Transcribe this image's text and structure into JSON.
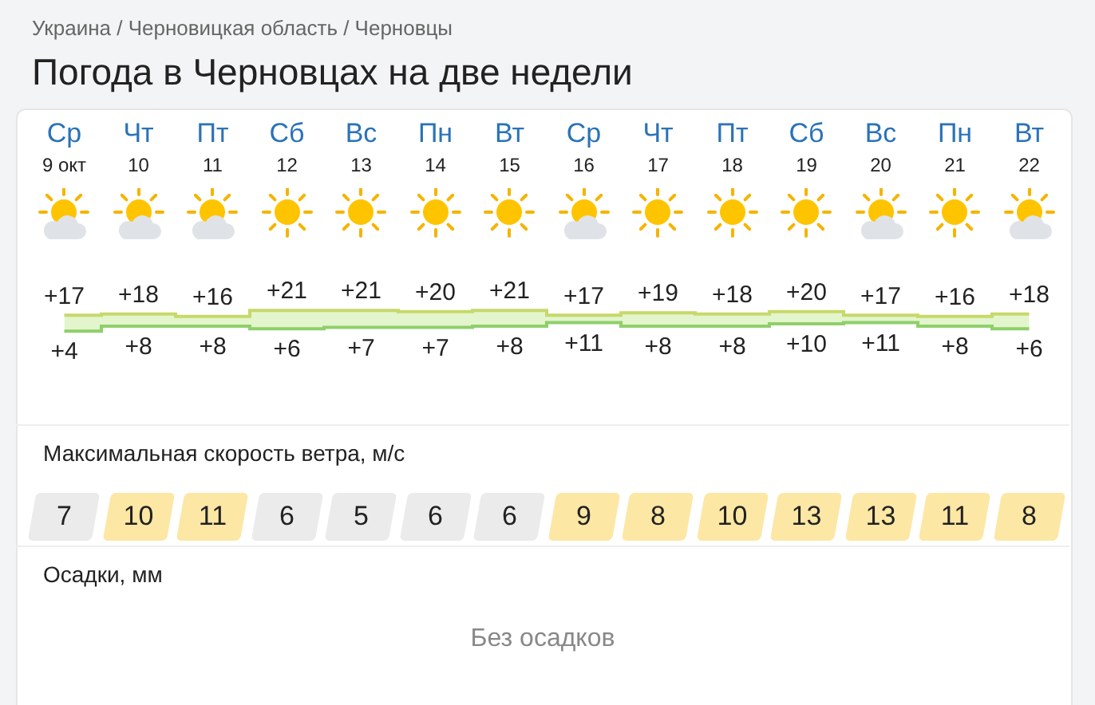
{
  "chart_data": [
    {
      "type": "step",
      "title": "Погода в Черновцах на две недели",
      "annotations": [
        "Украина / Черновицкая область / Черновцы"
      ],
      "categories": [
        "Ср\n9 окт",
        "Чт\n10",
        "Пт\n11",
        "Сб\n12",
        "Вс\n13",
        "Пн\n14",
        "Вт\n15",
        "Ср\n16",
        "Чт\n17",
        "Пт\n18",
        "Сб\n19",
        "Вс\n20",
        "Пн\n21",
        "Вт\n22"
      ],
      "tick_labels": "x",
      "grid": false,
      "legend": false,
      "series": [
        {
          "color": "#c6d96a",
          "values": [
            17,
            18,
            16,
            21,
            21,
            20,
            21,
            17,
            19,
            18,
            20,
            17,
            16,
            18
          ],
          "lower": [
            4,
            8,
            8,
            6,
            7,
            7,
            8,
            11,
            8,
            8,
            10,
            11,
            8,
            6
          ],
          "upper": [
            17,
            18,
            16,
            21,
            21,
            20,
            21,
            17,
            19,
            18,
            20,
            17,
            16,
            18
          ],
          "value_labels": [
            "+17",
            "+18",
            "+16",
            "+21",
            "+21",
            "+20",
            "+21",
            "+17",
            "+19",
            "+18",
            "+20",
            "+17",
            "+16",
            "+18"
          ]
        },
        {
          "color": "#8fcf6a",
          "values": [
            4,
            8,
            8,
            6,
            7,
            7,
            8,
            11,
            8,
            8,
            10,
            11,
            8,
            6
          ],
          "value_labels": [
            "+4",
            "+8",
            "+8",
            "+6",
            "+7",
            "+7",
            "+8",
            "+11",
            "+8",
            "+8",
            "+10",
            "+11",
            "+8",
            "+6"
          ]
        }
      ]
    },
    {
      "type": "other",
      "title": "Максимальная скорость ветра, м/с",
      "values": [
        7,
        10,
        11,
        6,
        5,
        6,
        6,
        9,
        8,
        10,
        13,
        13,
        11,
        8
      ],
      "data_labels": true,
      "colors": [
        "#ebebeb",
        "#fde7a4",
        "#fde7a4",
        "#ebebeb",
        "#ebebeb",
        "#ebebeb",
        "#ebebeb",
        "#fde7a4",
        "#fde7a4",
        "#fde7a4",
        "#fde7a4",
        "#fde7a4",
        "#fde7a4",
        "#fde7a4"
      ]
    },
    {
      "type": "other",
      "title": "Осадки, мм",
      "annotations": [
        "Без осадков"
      ]
    }
  ]
}
